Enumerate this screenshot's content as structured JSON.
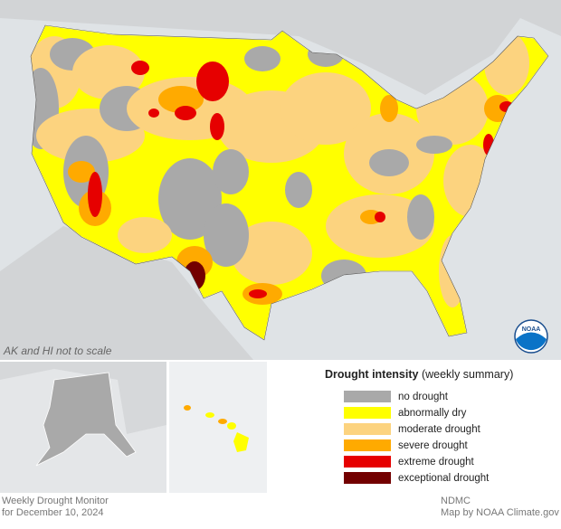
{
  "map": {
    "scale_note": "AK and HI not to scale",
    "logo_text": "NOAA"
  },
  "legend": {
    "title": "Drought intensity",
    "subtitle": "(weekly summary)",
    "items": [
      {
        "name": "no drought",
        "color": "#a9a9a9"
      },
      {
        "name": "abnormally dry",
        "color": "#ffff00"
      },
      {
        "name": "moderate drought",
        "color": "#fcd37f"
      },
      {
        "name": "severe drought",
        "color": "#ffaa00"
      },
      {
        "name": "extreme drought",
        "color": "#e60000"
      },
      {
        "name": "exceptional drought",
        "color": "#730000"
      }
    ]
  },
  "footer": {
    "title": "Weekly Drought Monitor",
    "date": "for December 10, 2024",
    "source": "NDMC",
    "credit": "Map by NOAA Climate.gov"
  }
}
